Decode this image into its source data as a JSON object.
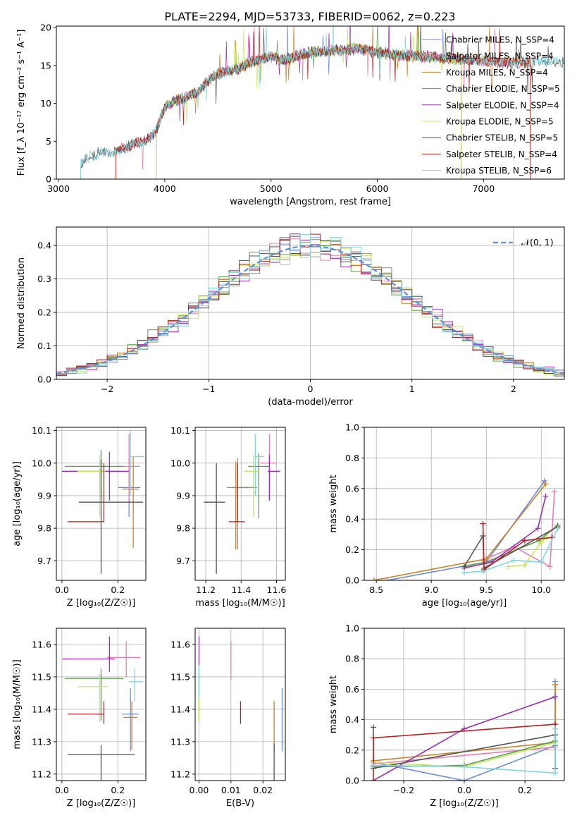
{
  "figure": {
    "title": "PLATE=2294, MJD=53733, FIBERID=0062, z=0.223"
  },
  "chart_data": [
    {
      "id": "spectrum",
      "type": "line",
      "xlabel": "wavelength [Angstrom, rest frame]",
      "ylabel": "Flux [f_λ 10⁻¹⁷ erg cm⁻² s⁻¹ A⁻¹]",
      "xlim": [
        2980,
        7760
      ],
      "ylim": [
        0,
        20.2
      ],
      "xticks": [
        3000,
        4000,
        5000,
        6000,
        7000
      ],
      "yticks": [
        0,
        5,
        10,
        15,
        20
      ],
      "legend_position": "right",
      "continuum": {
        "x": [
          3210,
          3300,
          3400,
          3500,
          3600,
          3700,
          3800,
          3900,
          3950,
          4000,
          4100,
          4200,
          4300,
          4400,
          4500,
          4600,
          4700,
          4800,
          4900,
          5000,
          5100,
          5200,
          5300,
          5400,
          5500,
          5600,
          5700,
          5800,
          5900,
          6000,
          6200,
          6400,
          6600,
          6800,
          7000,
          7200,
          7400,
          7600,
          7750
        ],
        "y": [
          2.2,
          3.0,
          3.6,
          3.4,
          4.0,
          4.6,
          5.0,
          5.8,
          7.5,
          9.5,
          10.3,
          10.8,
          11.4,
          12.8,
          13.9,
          14.3,
          14.6,
          15.4,
          15.7,
          16.2,
          15.8,
          16.0,
          16.5,
          16.8,
          16.8,
          17.0,
          17.0,
          17.3,
          17.0,
          16.7,
          16.4,
          16.2,
          16.0,
          15.8,
          15.6,
          15.4,
          15.4,
          15.5,
          15.3
        ]
      },
      "series": [
        {
          "name": "Chabrier MILES, N_SSP=4",
          "color": "#6b8ed8",
          "start": 3540,
          "end": 7440
        },
        {
          "name": "Salpeter MILES, N_SSP=4",
          "color": "#e77fb4",
          "start": 3540,
          "end": 7440
        },
        {
          "name": "Kroupa MILES, N_SSP=4",
          "color": "#c8822a",
          "start": 3540,
          "end": 7440
        },
        {
          "name": "Chabrier ELODIE, N_SSP=5",
          "color": "#5f9c4e",
          "start": 3920,
          "end": 6790
        },
        {
          "name": "Salpeter ELODIE, N_SSP=4",
          "color": "#9a2fb0",
          "start": 3920,
          "end": 6790
        },
        {
          "name": "Kroupa ELODIE, N_SSP=5",
          "color": "#c6e85a",
          "start": 3920,
          "end": 6790
        },
        {
          "name": "Chabrier STELIB, N_SSP=5",
          "color": "#555555",
          "start": 3210,
          "end": 7760
        },
        {
          "name": "Salpeter STELIB, N_SSP=4",
          "color": "#b22222",
          "start": 3540,
          "end": 7440
        },
        {
          "name": "Kroupa STELIB, N_SSP=6",
          "color": "#7fd6e0",
          "start": 3210,
          "end": 7760
        }
      ]
    },
    {
      "id": "residuals",
      "type": "histogram",
      "xlabel": "(data-model)/error",
      "ylabel": "Normed distribution",
      "xlim": [
        -2.5,
        2.5
      ],
      "ylim": [
        0,
        0.455
      ],
      "xticks": [
        -2,
        -1,
        0,
        1,
        2
      ],
      "yticks": [
        0.0,
        0.1,
        0.2,
        0.3,
        0.4
      ],
      "grid": true,
      "legend_position": "top-right",
      "reference": {
        "name": "𝒩(0, 1)",
        "color": "#5b8fd6",
        "dash": true
      },
      "bin_width": 0.1,
      "series_colors": [
        "#6b8ed8",
        "#e77fb4",
        "#c8822a",
        "#5f9c4e",
        "#9a2fb0",
        "#c6e85a",
        "#555555",
        "#b22222",
        "#7fd6e0"
      ]
    },
    {
      "id": "age-vs-Z",
      "type": "errorbar",
      "xlabel": "Z [log₁₀(Z/Z☉)]",
      "ylabel": "age  [log₁₀(age/yr)]",
      "xlim": [
        -0.02,
        0.3
      ],
      "ylim": [
        9.64,
        10.11
      ],
      "xticks": [
        0.0,
        0.2
      ],
      "yticks": [
        9.7,
        9.8,
        9.9,
        10.0,
        10.1
      ],
      "grid": true,
      "points": [
        {
          "color": "#6b8ed8",
          "x": 0.24,
          "xerr": [
            0.04,
            0.04
          ],
          "y": 9.925,
          "yerr": [
            0.09,
            0.09
          ]
        },
        {
          "color": "#e77fb4",
          "x": 0.24,
          "xerr": [
            0.04,
            0.04
          ],
          "y": 9.99,
          "yerr": [
            0.1,
            0.1
          ]
        },
        {
          "color": "#c8822a",
          "x": 0.255,
          "xerr": [
            0.04,
            0.02
          ],
          "y": 9.92,
          "yerr": [
            0.18,
            0.1
          ]
        },
        {
          "color": "#5f9c4e",
          "x": 0.14,
          "xerr": [
            0.13,
            0.08
          ],
          "y": 9.99,
          "yerr": [
            0.1,
            0.05
          ]
        },
        {
          "color": "#9a2fb0",
          "x": 0.17,
          "xerr": [
            0.17,
            0.07
          ],
          "y": 9.975,
          "yerr": [
            0.09,
            0.06
          ]
        },
        {
          "color": "#c6e85a",
          "x": 0.135,
          "xerr": [
            0.08,
            0.02
          ],
          "y": 9.975,
          "yerr": [
            0.14,
            0.05
          ]
        },
        {
          "color": "#555555",
          "x": 0.14,
          "xerr": [
            0.08,
            0.15
          ],
          "y": 9.88,
          "yerr": [
            0.22,
            0.13
          ]
        },
        {
          "color": "#b22222",
          "x": 0.15,
          "xerr": [
            0.13,
            0.0
          ],
          "y": 9.82,
          "yerr": [
            0.0,
            0.18
          ]
        },
        {
          "color": "#7fd6e0",
          "x": 0.245,
          "xerr": [
            0.0,
            0.05
          ],
          "y": 10.02,
          "yerr": [
            0.12,
            0.08
          ]
        }
      ]
    },
    {
      "id": "age-vs-mass",
      "type": "errorbar",
      "xlabel": "mass [log₁₀(M/M☉)]",
      "ylabel": "",
      "xlim": [
        11.14,
        11.65
      ],
      "ylim": [
        9.64,
        10.11
      ],
      "xticks": [
        11.2,
        11.4,
        11.6
      ],
      "yticks": [
        9.7,
        9.8,
        9.9,
        10.0,
        10.1
      ],
      "grid": true,
      "points": [
        {
          "color": "#6b8ed8",
          "x": 11.38,
          "xerr": [
            0.06,
            0.06
          ],
          "y": 9.925,
          "yerr": [
            0.19,
            0.09
          ]
        },
        {
          "color": "#e77fb4",
          "x": 11.56,
          "xerr": [
            0.05,
            0.04
          ],
          "y": 10.0,
          "yerr": [
            0.11,
            0.09
          ]
        },
        {
          "color": "#c8822a",
          "x": 11.37,
          "xerr": [
            0.02,
            0.12
          ],
          "y": 9.925,
          "yerr": [
            0.19,
            0.08
          ]
        },
        {
          "color": "#5f9c4e",
          "x": 11.5,
          "xerr": [
            0.06,
            0.06
          ],
          "y": 9.99,
          "yerr": [
            0.16,
            0.04
          ]
        },
        {
          "color": "#9a2fb0",
          "x": 11.56,
          "xerr": [
            0.01,
            0.06
          ],
          "y": 9.975,
          "yerr": [
            0.09,
            0.05
          ]
        },
        {
          "color": "#c6e85a",
          "x": 11.47,
          "xerr": [
            0.05,
            0.03
          ],
          "y": 9.975,
          "yerr": [
            0.14,
            0.05
          ]
        },
        {
          "color": "#555555",
          "x": 11.26,
          "xerr": [
            0.07,
            0.05
          ],
          "y": 9.88,
          "yerr": [
            0.22,
            0.12
          ]
        },
        {
          "color": "#b22222",
          "x": 11.38,
          "xerr": [
            0.05,
            0.04
          ],
          "y": 9.82,
          "yerr": [
            0.0,
            0.18
          ]
        },
        {
          "color": "#7fd6e0",
          "x": 11.48,
          "xerr": [
            0.0,
            0.05
          ],
          "y": 10.02,
          "yerr": [
            0.12,
            0.07
          ]
        }
      ]
    },
    {
      "id": "weight-vs-age",
      "type": "line",
      "xlabel": "age  [log₁₀(age/yr)]",
      "ylabel": "mass weight",
      "xlim": [
        8.39,
        10.21
      ],
      "ylim": [
        0,
        1
      ],
      "xticks": [
        8.5,
        9.0,
        9.5,
        10.0
      ],
      "yticks": [
        0.0,
        0.2,
        0.4,
        0.6,
        0.8,
        1.0
      ],
      "grid": true,
      "series": [
        {
          "color": "#6b8ed8",
          "x": [
            8.6,
            9.5,
            10.03
          ],
          "y": [
            0.0,
            0.12,
            0.65
          ]
        },
        {
          "color": "#e77fb4",
          "x": [
            9.47,
            9.75,
            10.08,
            10.12
          ],
          "y": [
            0.13,
            0.22,
            0.09,
            0.58
          ]
        },
        {
          "color": "#c8822a",
          "x": [
            8.48,
            9.5,
            10.04
          ],
          "y": [
            0.0,
            0.14,
            0.63
          ]
        },
        {
          "color": "#5f9c4e",
          "x": [
            9.3,
            9.5,
            9.98,
            10.15
          ],
          "y": [
            0.09,
            0.12,
            0.26,
            0.36
          ]
        },
        {
          "color": "#9a2fb0",
          "x": [
            9.3,
            9.55,
            9.97,
            10.04
          ],
          "y": [
            0.08,
            0.12,
            0.34,
            0.55
          ]
        },
        {
          "color": "#c6e85a",
          "x": [
            9.7,
            9.85,
            10.0,
            10.05
          ],
          "y": [
            0.09,
            0.1,
            0.25,
            0.28
          ]
        },
        {
          "color": "#555555",
          "x": [
            9.3,
            9.47,
            9.48,
            10.15
          ],
          "y": [
            0.09,
            0.29,
            0.08,
            0.35
          ]
        },
        {
          "color": "#b22222",
          "x": [
            9.47,
            9.48,
            9.85,
            10.1
          ],
          "y": [
            0.37,
            0.07,
            0.26,
            0.28
          ]
        },
        {
          "color": "#7fd6e0",
          "x": [
            9.3,
            9.47,
            9.75,
            10.0,
            10.15
          ],
          "y": [
            0.05,
            0.06,
            0.13,
            0.12,
            0.34
          ]
        }
      ]
    },
    {
      "id": "mass-vs-Z",
      "type": "errorbar",
      "xlabel": "Z [log₁₀(Z/Z☉)]",
      "ylabel": "mass [log₁₀(M/M☉)]",
      "xlim": [
        -0.02,
        0.3
      ],
      "ylim": [
        11.18,
        11.65
      ],
      "xticks": [
        0.0,
        0.2
      ],
      "yticks": [
        11.2,
        11.3,
        11.4,
        11.5,
        11.6
      ],
      "grid": true,
      "points": [
        {
          "color": "#6b8ed8",
          "x": 0.245,
          "xerr": [
            0.03,
            0.03
          ],
          "y": 11.385,
          "yerr": [
            0.115,
            0.08
          ]
        },
        {
          "color": "#e77fb4",
          "x": 0.23,
          "xerr": [
            0.07,
            0.05
          ],
          "y": 11.56,
          "yerr": [
            0.06,
            0.05
          ]
        },
        {
          "color": "#c8822a",
          "x": 0.25,
          "xerr": [
            0.03,
            0.02
          ],
          "y": 11.375,
          "yerr": [
            0.1,
            0.05
          ]
        },
        {
          "color": "#5f9c4e",
          "x": 0.14,
          "xerr": [
            0.13,
            0.08
          ],
          "y": 11.495,
          "yerr": [
            0.13,
            0.03
          ]
        },
        {
          "color": "#9a2fb0",
          "x": 0.17,
          "xerr": [
            0.17,
            0.02
          ],
          "y": 11.555,
          "yerr": [
            0.04,
            0.07
          ]
        },
        {
          "color": "#c6e85a",
          "x": 0.135,
          "xerr": [
            0.08,
            0.03
          ],
          "y": 11.47,
          "yerr": [
            0.11,
            0.04
          ]
        },
        {
          "color": "#555555",
          "x": 0.14,
          "xerr": [
            0.12,
            0.12
          ],
          "y": 11.26,
          "yerr": [
            0.08,
            0.03
          ]
        },
        {
          "color": "#b22222",
          "x": 0.15,
          "xerr": [
            0.13,
            0.0
          ],
          "y": 11.385,
          "yerr": [
            0.03,
            0.04
          ]
        },
        {
          "color": "#7fd6e0",
          "x": 0.26,
          "xerr": [
            0.02,
            0.03
          ],
          "y": 11.485,
          "yerr": [
            0.06,
            0.04
          ]
        }
      ]
    },
    {
      "id": "mass-vs-ebv",
      "type": "errorbar",
      "xlabel": "E(B-V)",
      "ylabel": "",
      "xlim": [
        -0.0012,
        0.027
      ],
      "ylim": [
        11.18,
        11.65
      ],
      "xticks": [
        0.0,
        0.01,
        0.02
      ],
      "yticks": [
        11.2,
        11.3,
        11.4,
        11.5,
        11.6
      ],
      "grid": true,
      "points": [
        {
          "color": "#6b8ed8",
          "x": 0.026,
          "xerr": [
            0.0,
            0.0
          ],
          "y": 11.385,
          "yerr": [
            0.115,
            0.08
          ]
        },
        {
          "color": "#e77fb4",
          "x": 0.01,
          "xerr": [
            0.0,
            0.0
          ],
          "y": 11.56,
          "yerr": [
            0.07,
            0.05
          ]
        },
        {
          "color": "#c8822a",
          "x": 0.0235,
          "xerr": [
            0.0,
            0.0
          ],
          "y": 11.375,
          "yerr": [
            0.105,
            0.05
          ]
        },
        {
          "color": "#5f9c4e",
          "x": 0.0,
          "xerr": [
            0.0,
            0.0
          ],
          "y": 11.495,
          "yerr": [
            0.13,
            0.03
          ]
        },
        {
          "color": "#9a2fb0",
          "x": 0.0,
          "xerr": [
            0.0,
            0.0
          ],
          "y": 11.555,
          "yerr": [
            0.02,
            0.07
          ]
        },
        {
          "color": "#c6e85a",
          "x": 0.0,
          "xerr": [
            0.0,
            0.0
          ],
          "y": 11.47,
          "yerr": [
            0.11,
            0.04
          ]
        },
        {
          "color": "#555555",
          "x": 0.0235,
          "xerr": [
            0.0,
            0.0
          ],
          "y": 11.26,
          "yerr": [
            0.08,
            0.035
          ]
        },
        {
          "color": "#b22222",
          "x": 0.013,
          "xerr": [
            0.0,
            0.0
          ],
          "y": 11.39,
          "yerr": [
            0.035,
            0.035
          ]
        },
        {
          "color": "#7fd6e0",
          "x": 0.0,
          "xerr": [
            0.0,
            0.0
          ],
          "y": 11.485,
          "yerr": [
            0.05,
            0.05
          ]
        }
      ]
    },
    {
      "id": "weight-vs-Z",
      "type": "line",
      "xlabel": "Z [log₁₀(Z/Z☉)]",
      "ylabel": "mass weight",
      "xlim": [
        -0.33,
        0.33
      ],
      "ylim": [
        0,
        1
      ],
      "xticks": [
        -0.2,
        0.0,
        0.2
      ],
      "yticks": [
        0.0,
        0.2,
        0.4,
        0.6,
        0.8,
        1.0
      ],
      "grid": true,
      "series": [
        {
          "color": "#6b8ed8",
          "x": [
            -0.3,
            0.0,
            0.3,
            0.3
          ],
          "y": [
            0.12,
            0.0,
            0.23,
            0.65
          ]
        },
        {
          "color": "#e77fb4",
          "x": [
            -0.3,
            0.3,
            0.3
          ],
          "y": [
            0.11,
            0.22,
            0.63
          ]
        },
        {
          "color": "#c8822a",
          "x": [
            -0.3,
            0.3,
            0.3
          ],
          "y": [
            0.13,
            0.25,
            0.63
          ]
        },
        {
          "color": "#5f9c4e",
          "x": [
            -0.3,
            0.0,
            0.3
          ],
          "y": [
            0.09,
            0.1,
            0.26
          ]
        },
        {
          "color": "#9a2fb0",
          "x": [
            -0.3,
            0.0,
            0.3
          ],
          "y": [
            0.0,
            0.34,
            0.55
          ]
        },
        {
          "color": "#c6e85a",
          "x": [
            -0.3,
            0.0,
            0.3
          ],
          "y": [
            0.12,
            0.09,
            0.25
          ]
        },
        {
          "color": "#555555",
          "x": [
            -0.3,
            -0.3,
            0.3,
            0.3
          ],
          "y": [
            0.35,
            0.08,
            0.3,
            0.08
          ]
        },
        {
          "color": "#b22222",
          "x": [
            -0.3,
            -0.3,
            0.3
          ],
          "y": [
            0.0,
            0.28,
            0.37
          ]
        },
        {
          "color": "#7fd6e0",
          "x": [
            -0.3,
            0.0,
            0.3,
            0.3
          ],
          "y": [
            0.1,
            0.09,
            0.05,
            0.34
          ]
        }
      ]
    }
  ]
}
